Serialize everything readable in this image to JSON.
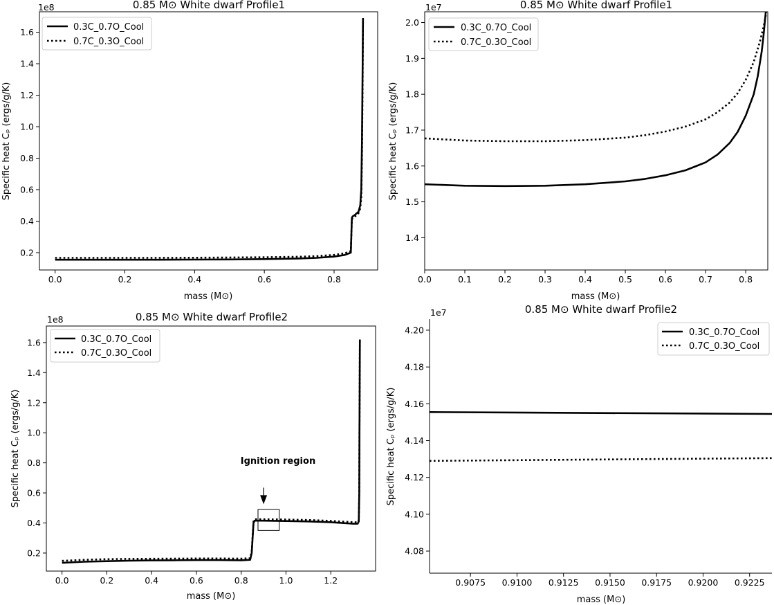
{
  "chart_data": [
    {
      "type": "line",
      "title": "0.85 M⊙ White dwarf Profile1",
      "xlabel": "mass (M⊙)",
      "ylabel": "Specific heat Cₚ (ergs/g/K)",
      "y_multiplier": "1e8",
      "xlim": [
        -0.045,
        0.925
      ],
      "ylim": [
        0.09,
        1.73
      ],
      "x_ticks": [
        0.0,
        0.2,
        0.4,
        0.6,
        0.8
      ],
      "x_tick_labels": [
        "0.0",
        "0.2",
        "0.4",
        "0.6",
        "0.8"
      ],
      "y_ticks": [
        0.2,
        0.4,
        0.6,
        0.8,
        1.0,
        1.2,
        1.4,
        1.6
      ],
      "y_tick_labels": [
        "0.2",
        "0.4",
        "0.6",
        "0.8",
        "1.0",
        "1.2",
        "1.4",
        "1.6"
      ],
      "legend": "upper left",
      "grid": false,
      "series": [
        {
          "name": "0.3C_0.7O_Cool",
          "style": "solid",
          "x": [
            0.0,
            0.1,
            0.2,
            0.3,
            0.4,
            0.5,
            0.6,
            0.7,
            0.75,
            0.8,
            0.83,
            0.848,
            0.851,
            0.853,
            0.86,
            0.87,
            0.875,
            0.878,
            0.88,
            0.882,
            0.883
          ],
          "y": [
            0.155,
            0.155,
            0.155,
            0.155,
            0.156,
            0.157,
            0.159,
            0.163,
            0.167,
            0.175,
            0.185,
            0.2,
            0.42,
            0.43,
            0.44,
            0.46,
            0.5,
            0.6,
            0.9,
            1.4,
            1.69
          ]
        },
        {
          "name": "0.7C_0.3O_Cool",
          "style": "dotted",
          "x": [
            0.0,
            0.1,
            0.2,
            0.3,
            0.4,
            0.5,
            0.6,
            0.7,
            0.75,
            0.8,
            0.83,
            0.848,
            0.851,
            0.853,
            0.86,
            0.87,
            0.875,
            0.878,
            0.88,
            0.882,
            0.883
          ],
          "y": [
            0.167,
            0.167,
            0.167,
            0.167,
            0.168,
            0.169,
            0.171,
            0.174,
            0.178,
            0.186,
            0.196,
            0.21,
            0.41,
            0.42,
            0.43,
            0.45,
            0.48,
            0.55,
            0.8,
            1.3,
            1.69
          ]
        }
      ]
    },
    {
      "type": "line",
      "title": "0.85 M⊙ White dwarf Profile1",
      "xlabel": "mass (M⊙)",
      "ylabel": "Specific heat Cₚ (ergs/g/K)",
      "y_multiplier": "1e7",
      "xlim": [
        0.0,
        0.855
      ],
      "ylim": [
        1.31,
        2.03
      ],
      "x_ticks": [
        0.0,
        0.1,
        0.2,
        0.3,
        0.4,
        0.5,
        0.6,
        0.7,
        0.8
      ],
      "x_tick_labels": [
        "0.0",
        "0.1",
        "0.2",
        "0.3",
        "0.4",
        "0.5",
        "0.6",
        "0.7",
        "0.8"
      ],
      "y_ticks": [
        1.4,
        1.5,
        1.6,
        1.7,
        1.8,
        1.9,
        2.0
      ],
      "y_tick_labels": [
        "1.4",
        "1.5",
        "1.6",
        "1.7",
        "1.8",
        "1.9",
        "2.0"
      ],
      "legend": "upper left",
      "grid": false,
      "series": [
        {
          "name": "0.3C_0.7O_Cool",
          "style": "solid",
          "x": [
            0.0,
            0.1,
            0.2,
            0.3,
            0.4,
            0.5,
            0.55,
            0.6,
            0.65,
            0.7,
            0.73,
            0.76,
            0.78,
            0.8,
            0.82,
            0.83,
            0.84,
            0.845,
            0.85,
            0.853
          ],
          "y": [
            1.549,
            1.545,
            1.544,
            1.545,
            1.549,
            1.557,
            1.564,
            1.574,
            1.588,
            1.61,
            1.632,
            1.664,
            1.695,
            1.74,
            1.8,
            1.85,
            1.92,
            1.97,
            2.03,
            2.08
          ]
        },
        {
          "name": "0.7C_0.3O_Cool",
          "style": "dotted",
          "x": [
            0.0,
            0.1,
            0.2,
            0.3,
            0.4,
            0.5,
            0.55,
            0.6,
            0.65,
            0.7,
            0.73,
            0.76,
            0.78,
            0.8,
            0.82,
            0.835,
            0.845,
            0.85,
            0.853
          ],
          "y": [
            1.677,
            1.671,
            1.669,
            1.669,
            1.672,
            1.679,
            1.686,
            1.696,
            1.71,
            1.73,
            1.75,
            1.777,
            1.803,
            1.84,
            1.89,
            1.945,
            1.99,
            2.02,
            2.05
          ]
        }
      ]
    },
    {
      "type": "line",
      "title": "0.85 M⊙ White dwarf Profile2",
      "xlabel": "mass (M⊙)",
      "ylabel": "Specific heat Cₚ (ergs/g/K)",
      "y_multiplier": "1e8",
      "xlim": [
        -0.07,
        1.4
      ],
      "ylim": [
        0.08,
        1.71
      ],
      "x_ticks": [
        0.0,
        0.2,
        0.4,
        0.6,
        0.8,
        1.0,
        1.2
      ],
      "x_tick_labels": [
        "0.0",
        "0.2",
        "0.4",
        "0.6",
        "0.8",
        "1.0",
        "1.2"
      ],
      "y_ticks": [
        0.2,
        0.4,
        0.6,
        0.8,
        1.0,
        1.2,
        1.4,
        1.6
      ],
      "y_tick_labels": [
        "0.2",
        "0.4",
        "0.6",
        "0.8",
        "1.0",
        "1.2",
        "1.4",
        "1.6"
      ],
      "legend": "upper left",
      "grid": false,
      "annotation": {
        "text": "Ignition region",
        "box_x": [
          0.875,
          0.97
        ],
        "box_y": [
          0.35,
          0.49
        ],
        "arrow_to": [
          0.9,
          0.525
        ],
        "arrow_from_y": 0.635
      },
      "series": [
        {
          "name": "0.3C_0.7O_Cool",
          "style": "solid",
          "x": [
            0.0,
            0.1,
            0.2,
            0.3,
            0.4,
            0.5,
            0.6,
            0.7,
            0.8,
            0.84,
            0.847,
            0.855,
            0.86,
            0.9,
            1.0,
            1.1,
            1.2,
            1.3,
            1.32,
            1.325,
            1.327,
            1.328,
            1.33
          ],
          "y": [
            0.135,
            0.142,
            0.146,
            0.149,
            0.151,
            0.152,
            0.153,
            0.153,
            0.152,
            0.155,
            0.2,
            0.4,
            0.415,
            0.415,
            0.413,
            0.41,
            0.405,
            0.395,
            0.395,
            0.41,
            0.6,
            1.0,
            1.62
          ]
        },
        {
          "name": "0.7C_0.3O_Cool",
          "style": "dotted",
          "x": [
            0.0,
            0.1,
            0.2,
            0.3,
            0.4,
            0.5,
            0.6,
            0.7,
            0.8,
            0.84,
            0.847,
            0.855,
            0.86,
            0.9,
            1.0,
            1.1,
            1.2,
            1.3,
            1.32,
            1.325,
            1.327,
            1.328,
            1.33
          ],
          "y": [
            0.148,
            0.155,
            0.159,
            0.161,
            0.162,
            0.163,
            0.164,
            0.164,
            0.163,
            0.165,
            0.21,
            0.41,
            0.425,
            0.425,
            0.423,
            0.42,
            0.414,
            0.405,
            0.405,
            0.42,
            0.6,
            1.0,
            1.62
          ]
        }
      ]
    },
    {
      "type": "line",
      "title": "0.85 M⊙ White dwarf Profile2",
      "xlabel": "mass (M⊙)",
      "ylabel": "Specific heat Cₚ (ergs/g/K)",
      "y_multiplier": "1e7",
      "xlim": [
        0.9053,
        0.9237
      ],
      "ylim": [
        4.068,
        4.206
      ],
      "x_ticks": [
        0.9075,
        0.91,
        0.9125,
        0.915,
        0.9175,
        0.92,
        0.9225
      ],
      "x_tick_labels": [
        "0.9075",
        "0.9100",
        "0.9125",
        "0.9150",
        "0.9175",
        "0.9200",
        "0.9225"
      ],
      "y_ticks": [
        4.08,
        4.1,
        4.12,
        4.14,
        4.16,
        4.18,
        4.2
      ],
      "y_tick_labels": [
        "4.08",
        "4.10",
        "4.12",
        "4.14",
        "4.16",
        "4.18",
        "4.20"
      ],
      "legend": "upper right",
      "grid": false,
      "series": [
        {
          "name": "0.3C_0.7O_Cool",
          "style": "solid",
          "x": [
            0.9053,
            0.9237
          ],
          "y": [
            4.1555,
            4.1545
          ]
        },
        {
          "name": "0.7C_0.3O_Cool",
          "style": "dotted",
          "x": [
            0.9053,
            0.9237
          ],
          "y": [
            4.129,
            4.1305
          ]
        }
      ]
    }
  ]
}
